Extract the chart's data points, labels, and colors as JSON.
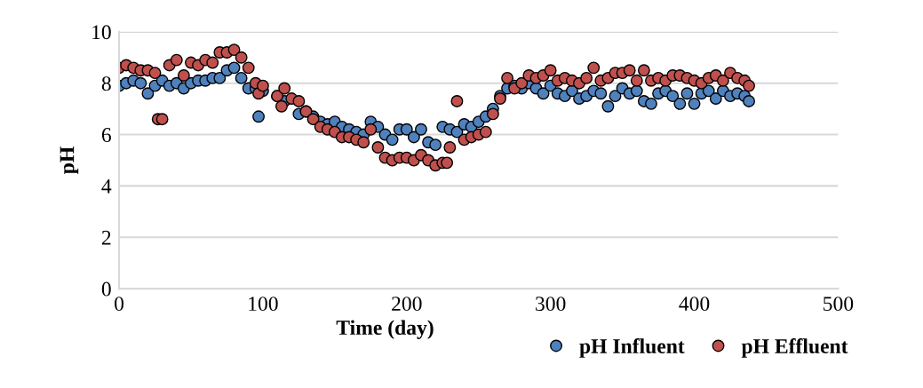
{
  "chart_data": {
    "type": "scatter",
    "xlabel": "Time (day)",
    "ylabel": "pH",
    "xlim": [
      0,
      500
    ],
    "xticks": [
      0,
      100,
      200,
      300,
      400,
      500
    ],
    "ylim": [
      0,
      10
    ],
    "yticks": [
      0,
      2,
      4,
      6,
      8,
      10
    ],
    "grid": "y",
    "legend": "bottom",
    "marker": "circle",
    "series": [
      {
        "name": "pH Influent",
        "color": "#4f81bd",
        "x": [
          0,
          5,
          10,
          15,
          20,
          25,
          30,
          35,
          40,
          45,
          50,
          55,
          60,
          65,
          70,
          75,
          80,
          85,
          90,
          95,
          97,
          100,
          110,
          115,
          125,
          130,
          135,
          140,
          145,
          150,
          155,
          160,
          165,
          170,
          175,
          180,
          185,
          190,
          195,
          200,
          205,
          210,
          215,
          220,
          225,
          230,
          235,
          240,
          245,
          250,
          255,
          260,
          265,
          270,
          275,
          280,
          285,
          290,
          295,
          300,
          305,
          310,
          315,
          320,
          325,
          330,
          335,
          340,
          345,
          350,
          355,
          360,
          365,
          370,
          375,
          380,
          385,
          390,
          395,
          400,
          405,
          410,
          415,
          420,
          425,
          430,
          435,
          438
        ],
        "values": [
          7.9,
          8.0,
          8.1,
          8.0,
          7.6,
          7.9,
          8.1,
          7.9,
          8.0,
          7.8,
          8.0,
          8.1,
          8.1,
          8.2,
          8.2,
          8.5,
          8.6,
          8.2,
          7.8,
          7.8,
          6.7,
          7.7,
          7.5,
          7.3,
          6.8,
          6.9,
          6.7,
          6.5,
          6.4,
          6.5,
          6.3,
          6.2,
          6.1,
          6.0,
          6.5,
          6.3,
          6.0,
          5.8,
          6.2,
          6.2,
          5.9,
          6.2,
          5.7,
          5.6,
          6.3,
          6.2,
          6.1,
          6.4,
          6.3,
          6.5,
          6.7,
          7.0,
          7.5,
          7.8,
          7.9,
          7.8,
          8.0,
          7.8,
          7.6,
          7.9,
          7.6,
          7.5,
          7.7,
          7.4,
          7.5,
          7.7,
          7.6,
          7.1,
          7.5,
          7.8,
          7.6,
          7.7,
          7.3,
          7.2,
          7.6,
          7.7,
          7.5,
          7.2,
          7.6,
          7.2,
          7.6,
          7.7,
          7.4,
          7.7,
          7.5,
          7.6,
          7.5,
          7.3
        ]
      },
      {
        "name": "pH Effluent",
        "color": "#c0504d",
        "x": [
          0,
          5,
          10,
          15,
          20,
          25,
          27,
          30,
          35,
          40,
          45,
          50,
          55,
          60,
          65,
          70,
          75,
          80,
          85,
          90,
          95,
          97,
          100,
          110,
          113,
          115,
          120,
          125,
          130,
          135,
          140,
          145,
          150,
          155,
          160,
          165,
          170,
          175,
          180,
          185,
          190,
          195,
          200,
          205,
          210,
          215,
          220,
          225,
          228,
          230,
          235,
          240,
          245,
          250,
          255,
          260,
          265,
          270,
          275,
          280,
          285,
          290,
          295,
          300,
          305,
          310,
          315,
          320,
          325,
          330,
          335,
          340,
          345,
          350,
          355,
          360,
          365,
          370,
          375,
          380,
          385,
          390,
          395,
          400,
          405,
          410,
          415,
          420,
          425,
          430,
          435,
          438
        ],
        "values": [
          8.6,
          8.7,
          8.6,
          8.5,
          8.5,
          8.4,
          6.6,
          6.6,
          8.7,
          8.9,
          8.3,
          8.8,
          8.7,
          8.9,
          8.8,
          9.2,
          9.2,
          9.3,
          9.0,
          8.6,
          8.0,
          7.6,
          7.9,
          7.5,
          7.1,
          7.8,
          7.4,
          7.3,
          6.9,
          6.6,
          6.3,
          6.2,
          6.1,
          5.9,
          5.9,
          5.8,
          5.7,
          6.2,
          5.5,
          5.1,
          5.0,
          5.1,
          5.1,
          5.0,
          5.2,
          5.0,
          4.8,
          4.9,
          4.9,
          5.5,
          7.3,
          5.8,
          5.9,
          6.0,
          6.1,
          6.8,
          7.4,
          8.2,
          7.8,
          8.0,
          8.3,
          8.2,
          8.3,
          8.5,
          8.1,
          8.2,
          8.1,
          8.0,
          8.2,
          8.6,
          8.1,
          8.2,
          8.4,
          8.4,
          8.5,
          8.1,
          8.5,
          8.1,
          8.2,
          8.1,
          8.3,
          8.3,
          8.2,
          8.1,
          8.0,
          8.2,
          8.3,
          8.1,
          8.4,
          8.2,
          8.1,
          7.9
        ]
      }
    ]
  }
}
